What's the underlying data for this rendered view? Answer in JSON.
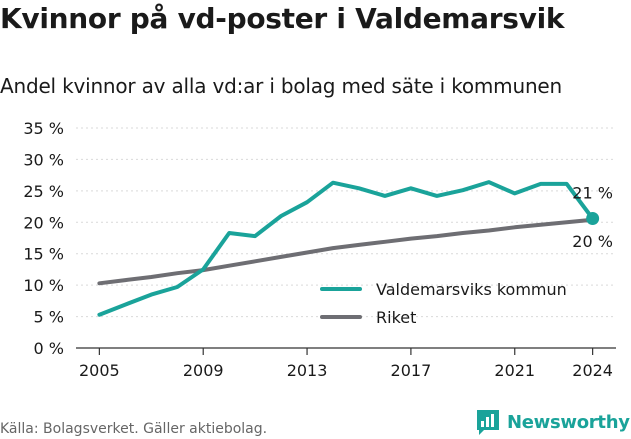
{
  "header": {
    "title": "Kvinnor på vd-poster i Valdemarsvik",
    "subtitle": "Andel kvinnor av alla vd:ar i bolag med säte i kommunen"
  },
  "footer": {
    "source": "Källa: Bolagsverket. Gäller aktiebolag.",
    "brand": "Newsworthy",
    "brand_icon": "bar-chart-logo-icon"
  },
  "colors": {
    "valdemarsvik": "#1aa39a",
    "riket": "#6e6e73",
    "grid": "#d9d9d9",
    "axis": "#333333",
    "text": "#1a1a1a"
  },
  "chart_data": {
    "type": "line",
    "x": [
      2005,
      2006,
      2007,
      2008,
      2009,
      2010,
      2011,
      2012,
      2013,
      2014,
      2015,
      2016,
      2017,
      2018,
      2019,
      2020,
      2021,
      2022,
      2023,
      2024
    ],
    "series": [
      {
        "name": "Valdemarsviks kommun",
        "color": "#1aa39a",
        "values": [
          5.3,
          6.9,
          8.5,
          9.7,
          12.5,
          18.3,
          17.8,
          21.0,
          23.2,
          26.3,
          25.4,
          24.2,
          25.4,
          24.2,
          25.1,
          26.4,
          24.6,
          26.1,
          26.1,
          20.6
        ],
        "end_label": "21 %"
      },
      {
        "name": "Riket",
        "color": "#6e6e73",
        "values": [
          10.3,
          10.8,
          11.3,
          11.9,
          12.4,
          13.1,
          13.8,
          14.5,
          15.2,
          15.9,
          16.4,
          16.9,
          17.4,
          17.8,
          18.3,
          18.7,
          19.2,
          19.6,
          20.0,
          20.4
        ],
        "end_label": "20 %"
      }
    ],
    "xticks": [
      2005,
      2009,
      2013,
      2017,
      2021,
      2024
    ],
    "xtick_labels": [
      "2005",
      "2009",
      "2013",
      "2017",
      "2021",
      "2024"
    ],
    "yticks": [
      0,
      5,
      10,
      15,
      20,
      25,
      30,
      35
    ],
    "ytick_labels": [
      "0 %",
      "5 %",
      "10 %",
      "15 %",
      "20 %",
      "25 %",
      "30 %",
      "35 %"
    ],
    "ylim": [
      0,
      35
    ],
    "xlim": [
      2004.1,
      2024.9
    ],
    "grid": true,
    "legend_position": "bottom-right",
    "xlabel": "",
    "ylabel": ""
  }
}
